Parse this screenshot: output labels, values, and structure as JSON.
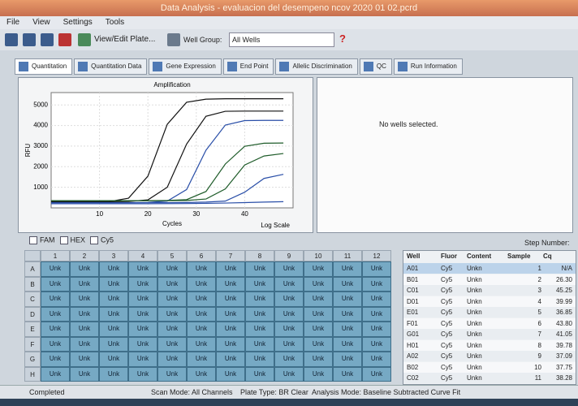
{
  "window": {
    "title": "Data Analysis - evaluacion del desempeno ncov 2020 01 02.pcrd"
  },
  "menu": [
    "File",
    "View",
    "Settings",
    "Tools"
  ],
  "toolbar": {
    "view_edit_plate": "View/Edit Plate...",
    "well_group_label": "Well Group:",
    "well_group_value": "All Wells",
    "help": "?"
  },
  "tabs": [
    "Quantitation",
    "Quantitation Data",
    "Gene Expression",
    "End Point",
    "Allelic Discrimination",
    "QC",
    "Run Information"
  ],
  "chart_data": {
    "type": "line",
    "title": "Amplification",
    "x_label": "Cycles",
    "y_label": "RFU",
    "log_scale_label": "Log Scale",
    "x": [
      0,
      4,
      8,
      12,
      16,
      20,
      24,
      28,
      32,
      36,
      40,
      44,
      48
    ],
    "xlim": [
      0,
      50
    ],
    "ylim": [
      0,
      5600
    ],
    "xticks": [
      10,
      20,
      30,
      40
    ],
    "yticks": [
      1000,
      2000,
      3000,
      4000,
      5000
    ],
    "grid": true,
    "series": [
      {
        "color": "#111111",
        "values": [
          300,
          300,
          300,
          305,
          470,
          1540,
          4060,
          5130,
          5280,
          5300,
          5300,
          5300,
          5300
        ]
      },
      {
        "color": "#111111",
        "values": [
          300,
          300,
          300,
          300,
          310,
          390,
          1000,
          3100,
          4450,
          4690,
          4700,
          4700,
          4700
        ]
      },
      {
        "color": "#2a4fa8",
        "values": [
          250,
          250,
          250,
          250,
          250,
          260,
          330,
          890,
          2800,
          4020,
          4240,
          4250,
          4250
        ]
      },
      {
        "color": "#1f5c2a",
        "values": [
          350,
          350,
          350,
          350,
          350,
          350,
          360,
          400,
          795,
          2130,
          2990,
          3140,
          3150
        ]
      },
      {
        "color": "#1f5c2a",
        "values": [
          350,
          350,
          350,
          350,
          350,
          350,
          350,
          360,
          430,
          920,
          2080,
          2520,
          2640
        ]
      },
      {
        "color": "#2a4fa8",
        "values": [
          250,
          250,
          250,
          250,
          250,
          250,
          250,
          260,
          280,
          330,
          760,
          1430,
          1630
        ]
      },
      {
        "color": "#2a4fa8",
        "values": [
          200,
          200,
          200,
          200,
          200,
          200,
          205,
          210,
          220,
          235,
          255,
          280,
          300
        ]
      }
    ]
  },
  "right_panel": {
    "message": "No wells selected."
  },
  "channels": [
    "FAM",
    "HEX",
    "Cy5"
  ],
  "step_number_label": "Step Number:",
  "plate": {
    "columns": [
      "1",
      "2",
      "3",
      "4",
      "5",
      "6",
      "7",
      "8",
      "9",
      "10",
      "11",
      "12"
    ],
    "rows": [
      "A",
      "B",
      "C",
      "D",
      "E",
      "F",
      "G",
      "H"
    ],
    "cells": [
      [
        "Unk",
        "Unk",
        "Unk",
        "Unk",
        "Unk",
        "Unk",
        "Unk",
        "Unk",
        "Unk",
        "Unk",
        "Unk",
        "Unk"
      ],
      [
        "Unk",
        "Unk",
        "Unk",
        "Unk",
        "Unk",
        "Unk",
        "Unk",
        "Unk",
        "Unk",
        "Unk",
        "Unk",
        "Unk"
      ],
      [
        "Unk",
        "Unk",
        "Unk",
        "Unk",
        "Unk",
        "Unk",
        "Unk",
        "Unk",
        "Unk",
        "Unk",
        "Unk",
        "Unk"
      ],
      [
        "Unk",
        "Unk",
        "Unk",
        "Unk",
        "Unk",
        "Unk",
        "Unk",
        "Unk",
        "Unk",
        "Unk",
        "Unk",
        "Unk"
      ],
      [
        "Unk",
        "Unk",
        "Unk",
        "Unk",
        "Unk",
        "Unk",
        "Unk",
        "Unk",
        "Unk",
        "Unk",
        "Unk",
        "Unk"
      ],
      [
        "Unk",
        "Unk",
        "Unk",
        "Unk",
        "Unk",
        "Unk",
        "Unk",
        "Unk",
        "Unk",
        "Unk",
        "Unk",
        "Unk"
      ],
      [
        "Unk",
        "Unk",
        "Unk",
        "Unk",
        "Unk",
        "Unk",
        "Unk",
        "Unk",
        "Unk",
        "Unk",
        "Unk",
        "Unk"
      ],
      [
        "Unk",
        "Unk",
        "Unk",
        "Unk",
        "Unk",
        "Unk",
        "Unk",
        "Unk",
        "Unk",
        "Unk",
        "Unk",
        "Unk"
      ]
    ]
  },
  "results_table": {
    "headers": [
      "Well",
      "Fluor",
      "Content",
      "Sample",
      "Cq"
    ],
    "rows": [
      [
        "A01",
        "Cy5",
        "Unkn",
        "1",
        "N/A"
      ],
      [
        "B01",
        "Cy5",
        "Unkn",
        "2",
        "26.30"
      ],
      [
        "C01",
        "Cy5",
        "Unkn",
        "3",
        "45.25"
      ],
      [
        "D01",
        "Cy5",
        "Unkn",
        "4",
        "39.99"
      ],
      [
        "E01",
        "Cy5",
        "Unkn",
        "5",
        "36.85"
      ],
      [
        "F01",
        "Cy5",
        "Unkn",
        "6",
        "43.80"
      ],
      [
        "G01",
        "Cy5",
        "Unkn",
        "7",
        "41.05"
      ],
      [
        "H01",
        "Cy5",
        "Unkn",
        "8",
        "39.78"
      ],
      [
        "A02",
        "Cy5",
        "Unkn",
        "9",
        "37.09"
      ],
      [
        "B02",
        "Cy5",
        "Unkn",
        "10",
        "37.75"
      ],
      [
        "C02",
        "Cy5",
        "Unkn",
        "11",
        "38.28"
      ]
    ]
  },
  "status": {
    "state": "Completed",
    "scan_mode": "Scan Mode: All Channels",
    "plate_type": "Plate Type: BR Clear",
    "analysis_mode": "Analysis Mode: Baseline Subtracted Curve Fit"
  }
}
